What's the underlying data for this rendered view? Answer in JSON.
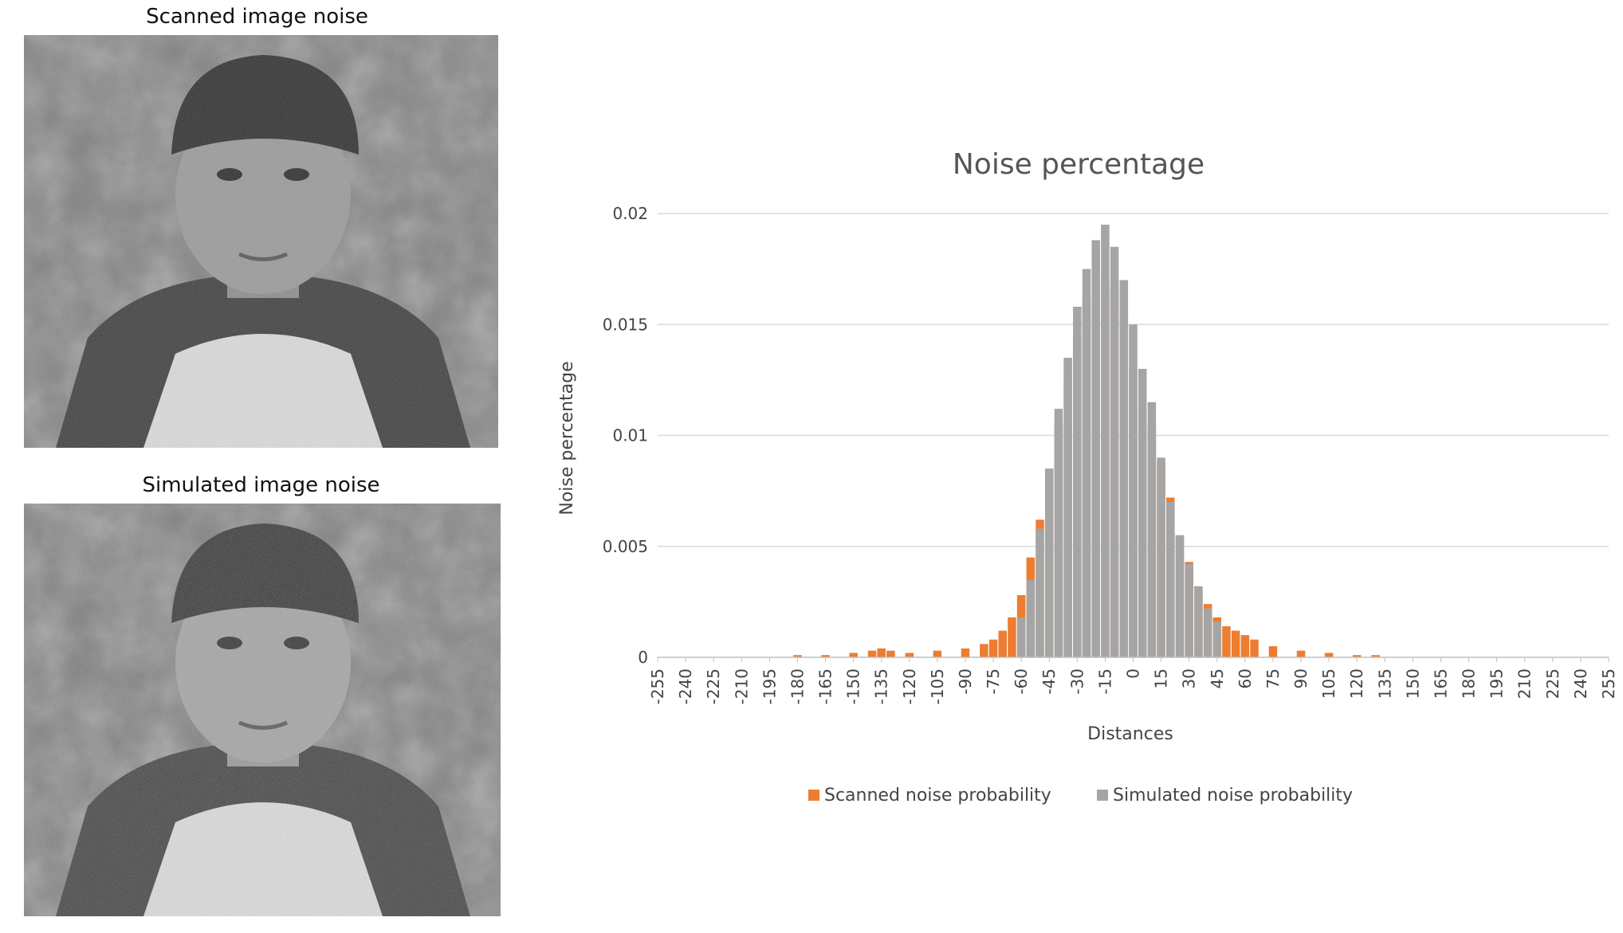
{
  "panels": {
    "scanned_caption": "Scanned image noise",
    "simulated_caption": "Simulated image noise"
  },
  "colors": {
    "scanned": "#ED7D31",
    "simulated": "#A5A5A5",
    "grid": "#D9D9D9",
    "axis": "#BFBFBF"
  },
  "chart_data": {
    "type": "bar",
    "title": "Noise percentage",
    "xlabel": "Distances",
    "ylabel": "Noise percentage",
    "ylim": [
      0,
      0.02
    ],
    "yticks": [
      "0",
      "0.005",
      "0.01",
      "0.015",
      "0.02"
    ],
    "xlim": [
      -255,
      255
    ],
    "xtick_step": 15,
    "grid": true,
    "legend_position": "bottom",
    "series": [
      {
        "name": "Scanned noise probability",
        "x": [
          -180,
          -165,
          -150,
          -140,
          -135,
          -130,
          -120,
          -105,
          -90,
          -80,
          -75,
          -70,
          -65,
          -60,
          -55,
          -50,
          -45,
          -40,
          -35,
          -30,
          -25,
          -20,
          -15,
          -10,
          -5,
          0,
          5,
          10,
          15,
          20,
          25,
          30,
          35,
          40,
          45,
          50,
          55,
          60,
          65,
          75,
          90,
          105,
          120,
          130
        ],
        "values": [
          0.0001,
          0.0001,
          0.0002,
          0.0003,
          0.0004,
          0.0003,
          0.0002,
          0.0003,
          0.0004,
          0.0006,
          0.0008,
          0.0012,
          0.0018,
          0.0028,
          0.0045,
          0.0062,
          0.0085,
          0.0105,
          0.0125,
          0.0145,
          0.016,
          0.0168,
          0.017,
          0.0165,
          0.0155,
          0.013,
          0.0112,
          0.0105,
          0.0088,
          0.0072,
          0.0055,
          0.0043,
          0.0032,
          0.0024,
          0.0018,
          0.0014,
          0.0012,
          0.001,
          0.0008,
          0.0005,
          0.0003,
          0.0002,
          0.0001,
          0.0001
        ]
      },
      {
        "name": "Simulated noise probability",
        "x": [
          -60,
          -55,
          -50,
          -45,
          -40,
          -35,
          -30,
          -25,
          -20,
          -15,
          -10,
          -5,
          0,
          5,
          10,
          15,
          20,
          25,
          30,
          35,
          40,
          45
        ],
        "values": [
          0.0018,
          0.0035,
          0.0058,
          0.0085,
          0.0112,
          0.0135,
          0.0158,
          0.0175,
          0.0188,
          0.0195,
          0.0185,
          0.017,
          0.015,
          0.013,
          0.0115,
          0.009,
          0.007,
          0.0055,
          0.0042,
          0.0032,
          0.0022,
          0.0016
        ]
      }
    ]
  }
}
